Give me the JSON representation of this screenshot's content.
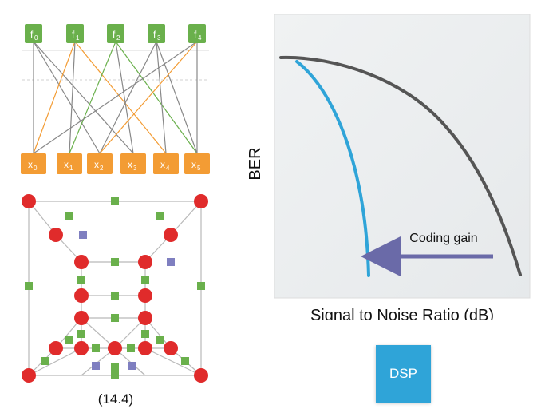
{
  "tanner_graph": {
    "check_nodes": [
      {
        "base": "f",
        "sub": "0"
      },
      {
        "base": "f",
        "sub": "1"
      },
      {
        "base": "f",
        "sub": "2"
      },
      {
        "base": "f",
        "sub": "3"
      },
      {
        "base": "f",
        "sub": "4"
      }
    ],
    "variable_nodes": [
      {
        "base": "x",
        "sub": "0"
      },
      {
        "base": "x",
        "sub": "1"
      },
      {
        "base": "x",
        "sub": "2"
      },
      {
        "base": "x",
        "sub": "3"
      },
      {
        "base": "x",
        "sub": "4"
      },
      {
        "base": "x",
        "sub": "5"
      }
    ],
    "check_color": "#6ab04c",
    "variable_color": "#f39c34"
  },
  "lattice": {
    "caption": "(14.4)",
    "node_color": "#e02b2b",
    "square_green": "#6ab04c",
    "square_purple": "#7f7fc0"
  },
  "chart_data": {
    "type": "line",
    "ylabel": "BER",
    "xlabel": "Signal to Noise Ratio (dB)",
    "annotation": "Coding gain",
    "series": [
      {
        "color": "#555555"
      },
      {
        "color": "#2fa4d8"
      }
    ],
    "arrow_color": "#6a6aa8"
  },
  "dsp_chip": {
    "label": "DSP",
    "color": "#2fa4d8"
  }
}
